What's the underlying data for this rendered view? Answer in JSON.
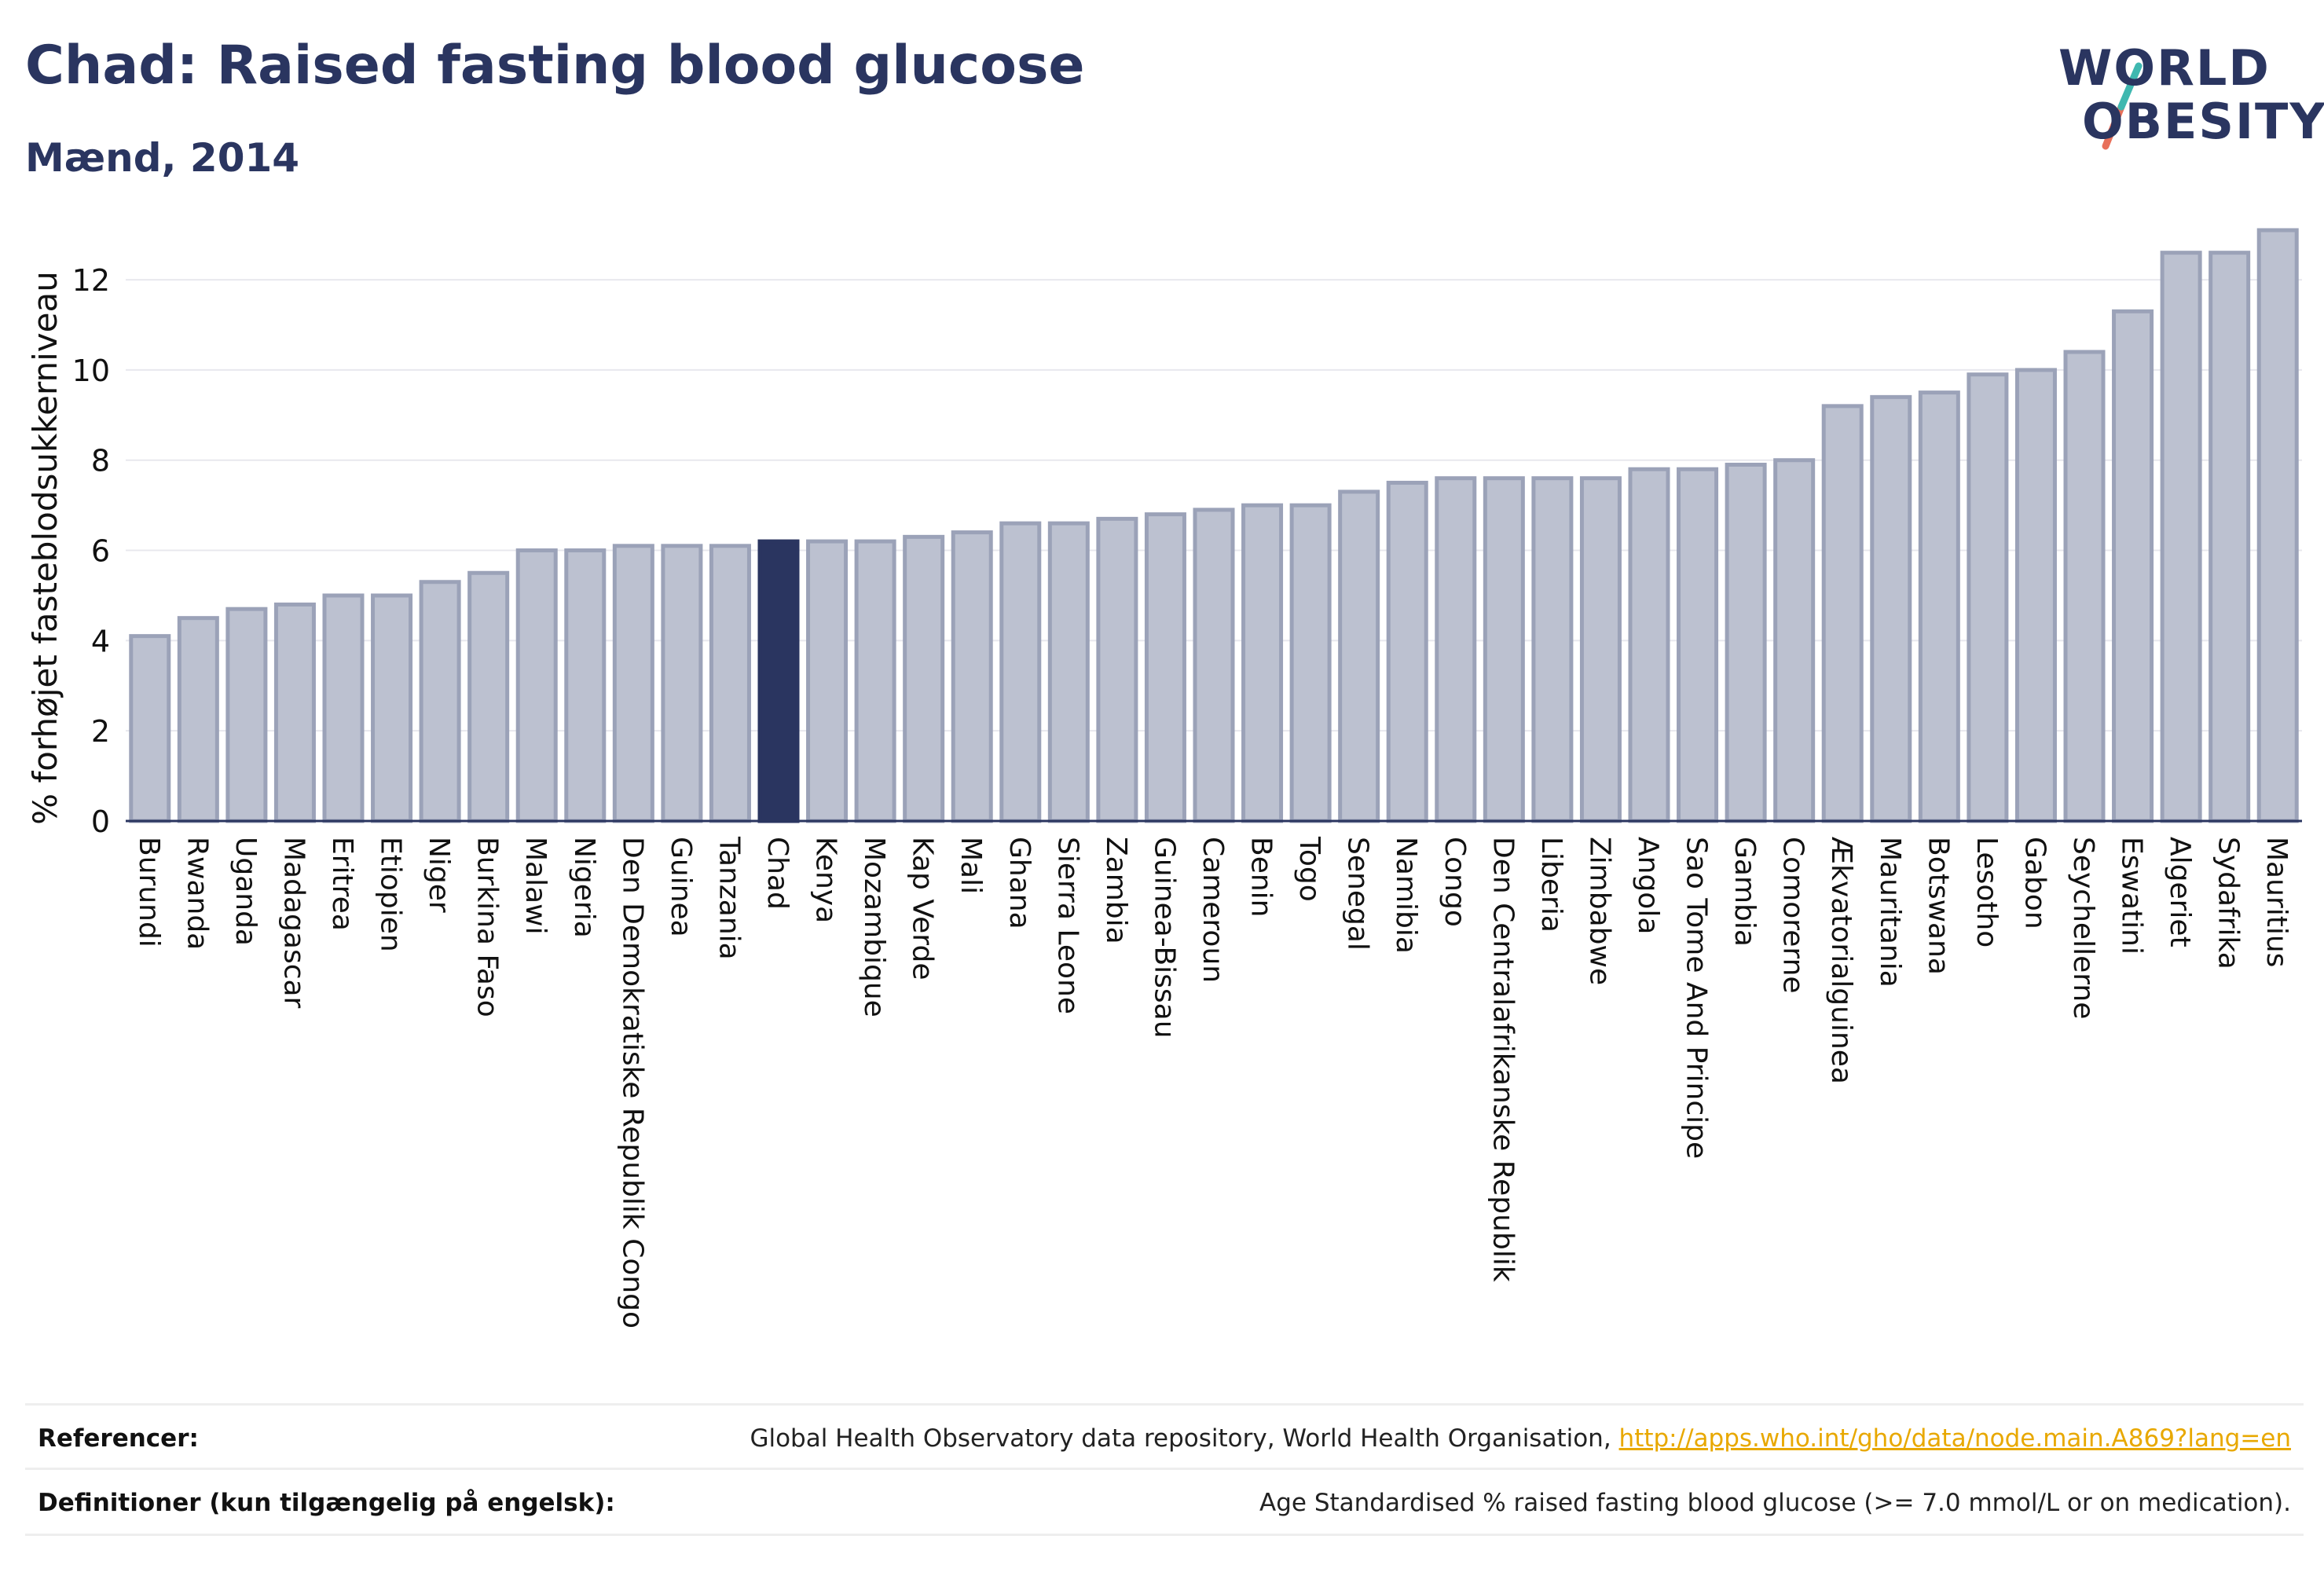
{
  "header": {
    "title": "Chad: Raised fasting blood glucose",
    "subtitle": "Mænd, 2014"
  },
  "logo": {
    "line1": "WORLD",
    "line2": "OBESITY"
  },
  "colors": {
    "highlight": "#2a3560",
    "bar_fill": "#bcc1d0",
    "bar_stroke": "#9ba2b8",
    "axis_text": "#111111",
    "link": "#e8a800",
    "logo_teal": "#3fb8b0",
    "logo_coral": "#e8705a"
  },
  "chart_data": {
    "type": "bar",
    "ylabel": "% forhøjet fasteblodsukkerniveau",
    "ylim": [
      0,
      13.5
    ],
    "yticks": [
      0,
      2,
      4,
      6,
      8,
      10,
      12
    ],
    "grid": true,
    "highlight_category": "Chad",
    "categories": [
      "Burundi",
      "Rwanda",
      "Uganda",
      "Madagascar",
      "Eritrea",
      "Etiopien",
      "Niger",
      "Burkina Faso",
      "Malawi",
      "Nigeria",
      "Den Demokratiske Republik Congo",
      "Guinea",
      "Tanzania",
      "Chad",
      "Kenya",
      "Mozambique",
      "Kap Verde",
      "Mali",
      "Ghana",
      "Sierra Leone",
      "Zambia",
      "Guinea-Bissau",
      "Cameroun",
      "Benin",
      "Togo",
      "Senegal",
      "Namibia",
      "Congo",
      "Den Centralafrikanske Republik",
      "Liberia",
      "Zimbabwe",
      "Angola",
      "Sao Tome And Principe",
      "Gambia",
      "Comorerne",
      "Ækvatorialguinea",
      "Mauritania",
      "Botswana",
      "Lesotho",
      "Gabon",
      "Seychellerne",
      "Eswatini",
      "Algeriet",
      "Sydafrika",
      "Mauritius"
    ],
    "values": [
      4.1,
      4.5,
      4.7,
      4.8,
      5.0,
      5.0,
      5.3,
      5.5,
      6.0,
      6.0,
      6.1,
      6.1,
      6.1,
      6.2,
      6.2,
      6.2,
      6.3,
      6.4,
      6.6,
      6.6,
      6.7,
      6.8,
      6.9,
      7.0,
      7.0,
      7.3,
      7.5,
      7.6,
      7.6,
      7.6,
      7.6,
      7.8,
      7.8,
      7.9,
      8.0,
      9.2,
      9.4,
      9.5,
      9.9,
      10.0,
      10.4,
      11.3,
      12.6,
      12.6,
      13.1
    ]
  },
  "footer": {
    "ref_label": "Referencer:",
    "ref_text": "Global Health Observatory data repository, World Health Organisation, ",
    "ref_link": "http://apps.who.int/gho/data/node.main.A869?lang=en",
    "def_label": "Definitioner (kun tilgængelig på engelsk):",
    "def_text": "Age Standardised % raised fasting blood glucose (>= 7.0 mmol/L or on medication)."
  }
}
